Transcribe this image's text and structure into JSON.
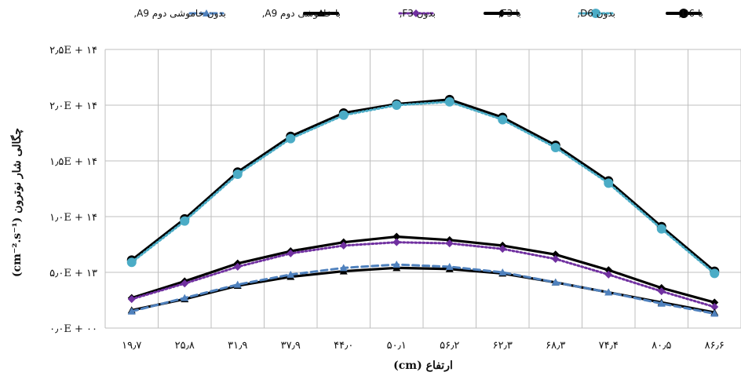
{
  "chart_data": {
    "type": "line",
    "xlabel": "ارتفاع (cm)",
    "ylabel": "چگالی شار نوترون (cm⁻².s⁻¹)",
    "categories": [
      "۱۹٫۷",
      "۲۵٫۸",
      "۳۱٫۹",
      "۳۷٫۹",
      "۴۴٫۰",
      "۵۰٫۱",
      "۵۶٫۲",
      "۶۲٫۳",
      "۶۸٫۳",
      "۷۴٫۴",
      "۸۰٫۵",
      "۸۶٫۶"
    ],
    "y_ticks": [
      "۰٫۰E + ۰۰",
      "۵٫۰E + ۱۳",
      "۱٫۰E + ۱۴",
      "۱٫۵E + ۱۴",
      "۲٫۰E + ۱۴",
      "۲٫۵E + ۱۴"
    ],
    "ylim": [
      0,
      250000000000000.0
    ],
    "grid": true,
    "legend_position": "top",
    "series": [
      {
        "name": "با D6,",
        "color": "#000000",
        "style": "solid",
        "marker": "circle",
        "values": [
          61000000000000.0,
          98000000000000.0,
          140000000000000.0,
          172000000000000.0,
          193000000000000.0,
          201000000000000.0,
          205000000000000.0,
          189000000000000.0,
          164000000000000.0,
          132000000000000.0,
          91000000000000.0,
          51000000000000.0
        ]
      },
      {
        "name": "بدون D6,",
        "color": "#4bacc6",
        "style": "dotted",
        "marker": "circle",
        "values": [
          59000000000000.0,
          96000000000000.0,
          138000000000000.0,
          170000000000000.0,
          191000000000000.0,
          200000000000000.0,
          203000000000000.0,
          187000000000000.0,
          162000000000000.0,
          130000000000000.0,
          89000000000000.0,
          49000000000000.0
        ]
      },
      {
        "name": "با F3,",
        "color": "#000000",
        "style": "solid",
        "marker": "diamond",
        "values": [
          27000000000000.0,
          42000000000000.0,
          58000000000000.0,
          69000000000000.0,
          77000000000000.0,
          82000000000000.0,
          79000000000000.0,
          74000000000000.0,
          66000000000000.0,
          52000000000000.0,
          36000000000000.0,
          23000000000000.0
        ]
      },
      {
        "name": "بدون F3,",
        "color": "#7030a0",
        "style": "dotted",
        "marker": "diamond",
        "values": [
          26000000000000.0,
          40000000000000.0,
          55000000000000.0,
          67000000000000.0,
          74000000000000.0,
          77000000000000.0,
          76000000000000.0,
          71000000000000.0,
          62000000000000.0,
          48000000000000.0,
          33000000000000.0,
          19000000000000.0
        ]
      },
      {
        "name": "با خاموشی دوم A9,",
        "color": "#000000",
        "style": "solid",
        "marker": "triangle",
        "values": [
          16000000000000.0,
          26000000000000.0,
          38000000000000.0,
          46000000000000.0,
          51000000000000.0,
          54000000000000.0,
          53000000000000.0,
          49000000000000.0,
          41000000000000.0,
          32000000000000.0,
          23000000000000.0,
          14000000000000.0
        ]
      },
      {
        "name": "بدون خاموشی دوم A9,",
        "color": "#4f81bd",
        "style": "dashed",
        "marker": "triangle",
        "values": [
          15000000000000.0,
          27000000000000.0,
          39000000000000.0,
          48000000000000.0,
          54000000000000.0,
          57000000000000.0,
          55000000000000.0,
          50000000000000.0,
          41000000000000.0,
          32000000000000.0,
          22000000000000.0,
          13000000000000.0
        ]
      }
    ]
  }
}
